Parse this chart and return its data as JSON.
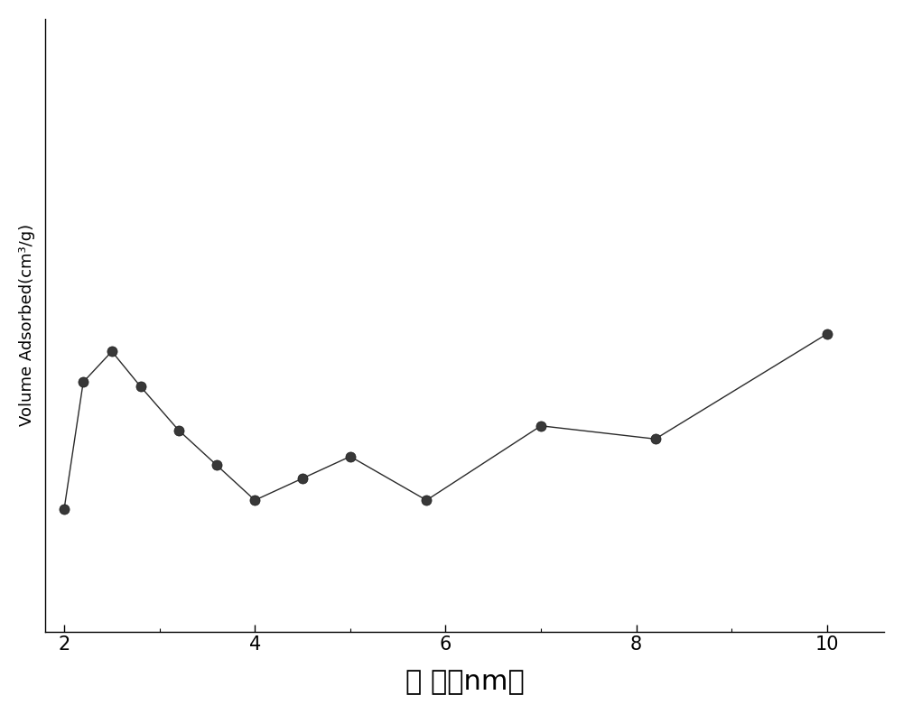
{
  "x": [
    2.0,
    2.2,
    2.5,
    2.8,
    3.2,
    3.6,
    4.0,
    4.5,
    5.0,
    5.8,
    7.0,
    8.2,
    10.0
  ],
  "y": [
    0.28,
    0.57,
    0.64,
    0.56,
    0.46,
    0.38,
    0.3,
    0.35,
    0.4,
    0.3,
    0.47,
    0.44,
    0.68
  ],
  "xlabel": "孔 径（nm）",
  "ylabel": "Volume Adsorbed(cm³/g)",
  "xlim": [
    1.8,
    10.6
  ],
  "ylim": [
    0.0,
    1.4
  ],
  "xticks": [
    2,
    4,
    6,
    8,
    10
  ],
  "line_color": "#2a2a2a",
  "marker_facecolor": "#383838",
  "marker_edgecolor": "#1a1a1a",
  "marker_size": 8,
  "line_width": 1.0,
  "background_color": "#ffffff",
  "xlabel_fontsize": 22,
  "ylabel_fontsize": 13,
  "tick_fontsize": 15,
  "fig_width": 10.0,
  "fig_height": 7.91
}
